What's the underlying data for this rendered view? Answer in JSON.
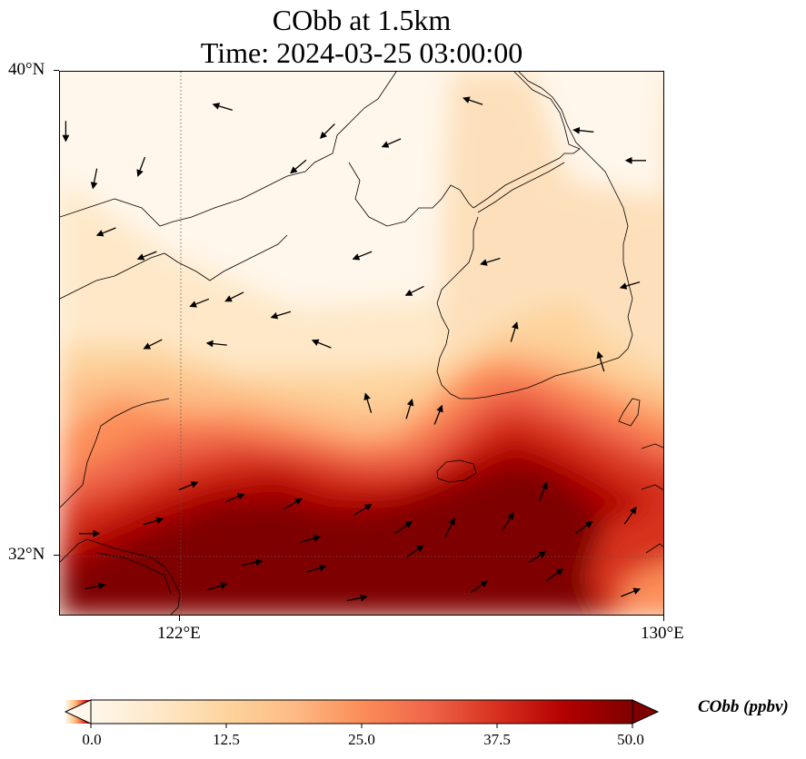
{
  "title": {
    "line1": "CObb at 1.5km",
    "line2": "Time: 2024-03-25 03:00:00"
  },
  "map": {
    "variable": "CObb",
    "extent": {
      "lon_min": 119.6,
      "lon_max": 130.0,
      "lat_min": 30.8,
      "lat_max": 40.0
    },
    "lat_ticks": [
      {
        "value": 40,
        "label": "40°N"
      },
      {
        "value": 32,
        "label": "32°N"
      }
    ],
    "lon_ticks": [
      {
        "value": 122,
        "label": "122°E"
      },
      {
        "value": 130,
        "label": "130°E"
      }
    ],
    "gridlines": {
      "lon": [
        122
      ],
      "lat": [
        32
      ],
      "style": "dotted"
    },
    "plume_description": "High CObb concentrations (dark red, ~50 ppbv) over the southern third of the domain, decreasing northward to near 0 over the Yellow Sea and northern China",
    "wind_arrows": [
      {
        "lon": 119.7,
        "lat": 39.0,
        "u": 0.0,
        "v": -1.0
      },
      {
        "lon": 120.2,
        "lat": 38.2,
        "u": -0.2,
        "v": -1.0
      },
      {
        "lon": 121.0,
        "lat": 38.4,
        "u": -0.3,
        "v": -0.8
      },
      {
        "lon": 122.4,
        "lat": 39.4,
        "u": -1.0,
        "v": 0.3
      },
      {
        "lon": 123.7,
        "lat": 38.4,
        "u": -0.6,
        "v": -0.5
      },
      {
        "lon": 124.2,
        "lat": 39.0,
        "u": -0.5,
        "v": -0.5
      },
      {
        "lon": 125.3,
        "lat": 38.8,
        "u": -0.7,
        "v": -0.3
      },
      {
        "lon": 126.7,
        "lat": 39.5,
        "u": -0.6,
        "v": 0.2
      },
      {
        "lon": 128.6,
        "lat": 39.0,
        "u": -1.0,
        "v": 0.1
      },
      {
        "lon": 129.5,
        "lat": 38.5,
        "u": -1.0,
        "v": 0.0
      },
      {
        "lon": 120.4,
        "lat": 37.3,
        "u": -1.0,
        "v": -0.4
      },
      {
        "lon": 121.1,
        "lat": 36.9,
        "u": -1.0,
        "v": -0.4
      },
      {
        "lon": 122.0,
        "lat": 36.1,
        "u": -1.0,
        "v": -0.4
      },
      {
        "lon": 122.6,
        "lat": 36.2,
        "u": -1.0,
        "v": -0.5
      },
      {
        "lon": 123.4,
        "lat": 35.9,
        "u": -1.0,
        "v": -0.3
      },
      {
        "lon": 124.8,
        "lat": 36.9,
        "u": -1.0,
        "v": -0.4
      },
      {
        "lon": 125.7,
        "lat": 36.3,
        "u": -1.0,
        "v": -0.5
      },
      {
        "lon": 127.0,
        "lat": 36.8,
        "u": -1.0,
        "v": -0.3
      },
      {
        "lon": 129.4,
        "lat": 36.4,
        "u": -1.0,
        "v": -0.3
      },
      {
        "lon": 121.2,
        "lat": 35.4,
        "u": -1.0,
        "v": -0.5
      },
      {
        "lon": 122.3,
        "lat": 35.4,
        "u": -1.0,
        "v": 0.1
      },
      {
        "lon": 124.1,
        "lat": 35.4,
        "u": -1.0,
        "v": 0.4
      },
      {
        "lon": 127.4,
        "lat": 35.6,
        "u": 0.3,
        "v": 1.0
      },
      {
        "lon": 128.9,
        "lat": 35.1,
        "u": -0.3,
        "v": 1.0
      },
      {
        "lon": 124.9,
        "lat": 34.4,
        "u": -0.3,
        "v": 1.0
      },
      {
        "lon": 125.6,
        "lat": 34.3,
        "u": 0.3,
        "v": 1.0
      },
      {
        "lon": 126.1,
        "lat": 34.2,
        "u": 0.4,
        "v": 1.0
      },
      {
        "lon": 121.8,
        "lat": 33.0,
        "u": 1.0,
        "v": 0.4
      },
      {
        "lon": 122.6,
        "lat": 32.8,
        "u": 1.0,
        "v": 0.4
      },
      {
        "lon": 123.6,
        "lat": 32.7,
        "u": 1.0,
        "v": 0.6
      },
      {
        "lon": 124.8,
        "lat": 32.6,
        "u": 1.0,
        "v": 0.6
      },
      {
        "lon": 126.3,
        "lat": 32.3,
        "u": 0.5,
        "v": 1.0
      },
      {
        "lon": 127.9,
        "lat": 32.9,
        "u": 0.4,
        "v": 1.0
      },
      {
        "lon": 129.4,
        "lat": 32.5,
        "u": 0.7,
        "v": 1.0
      },
      {
        "lon": 120.1,
        "lat": 32.2,
        "u": 1.0,
        "v": 0.0
      },
      {
        "lon": 121.2,
        "lat": 32.4,
        "u": 1.0,
        "v": 0.3
      },
      {
        "lon": 123.9,
        "lat": 32.1,
        "u": 1.0,
        "v": 0.3
      },
      {
        "lon": 125.5,
        "lat": 32.3,
        "u": 1.0,
        "v": 0.7
      },
      {
        "lon": 127.3,
        "lat": 32.4,
        "u": 0.6,
        "v": 1.0
      },
      {
        "lon": 128.6,
        "lat": 32.3,
        "u": 1.0,
        "v": 0.7
      },
      {
        "lon": 122.9,
        "lat": 31.7,
        "u": 1.0,
        "v": 0.2
      },
      {
        "lon": 124.0,
        "lat": 31.6,
        "u": 1.0,
        "v": 0.3
      },
      {
        "lon": 125.7,
        "lat": 31.9,
        "u": 1.0,
        "v": 0.7
      },
      {
        "lon": 127.8,
        "lat": 31.8,
        "u": 1.0,
        "v": 0.6
      },
      {
        "lon": 128.1,
        "lat": 31.5,
        "u": 1.0,
        "v": 0.7
      },
      {
        "lon": 120.2,
        "lat": 31.3,
        "u": 1.0,
        "v": 0.2
      },
      {
        "lon": 122.3,
        "lat": 31.3,
        "u": 1.0,
        "v": 0.3
      },
      {
        "lon": 124.7,
        "lat": 31.1,
        "u": 1.0,
        "v": 0.2
      },
      {
        "lon": 126.8,
        "lat": 31.3,
        "u": 1.0,
        "v": 0.7
      },
      {
        "lon": 129.4,
        "lat": 31.2,
        "u": 1.0,
        "v": 0.4
      }
    ]
  },
  "colorbar": {
    "min": 0.0,
    "max": 50.0,
    "extend": "both",
    "tick_labels": [
      "0.0",
      "12.5",
      "25.0",
      "37.5",
      "50.0"
    ],
    "tick_values": [
      0.0,
      12.5,
      25.0,
      37.5,
      50.0
    ],
    "label": "CObb (ppbv)",
    "colormap": "OrRd",
    "colors": [
      "#fff7ec",
      "#fee8c8",
      "#fdd49e",
      "#fdbb84",
      "#fc8d59",
      "#ef6548",
      "#d7301f",
      "#b30000",
      "#7f0000"
    ]
  }
}
